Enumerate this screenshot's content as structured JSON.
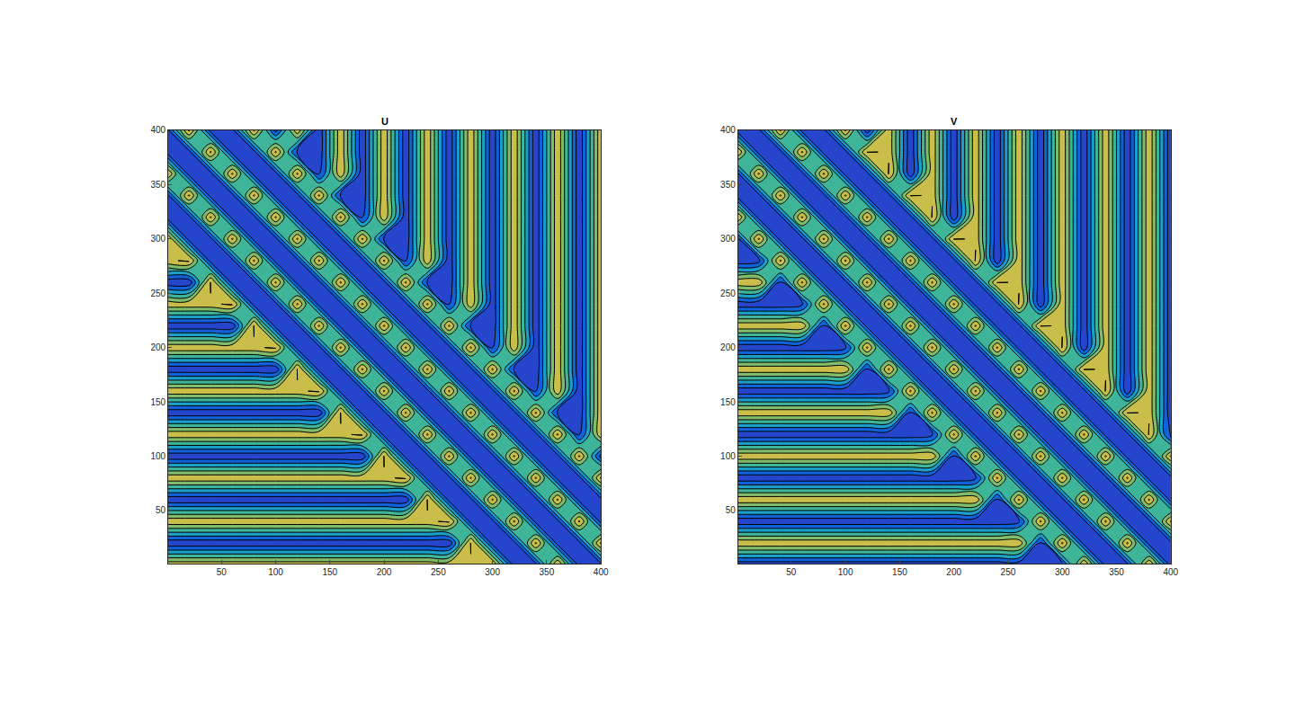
{
  "chart_data": [
    {
      "type": "contour",
      "title": "U",
      "x": [
        0,
        20,
        40,
        60,
        80,
        100,
        120,
        140,
        160,
        180,
        200,
        220,
        240,
        260,
        280,
        300,
        320,
        340,
        360,
        380,
        400
      ],
      "y": [
        0,
        20,
        40,
        60,
        80,
        100,
        120,
        140,
        160,
        180,
        200,
        220,
        240,
        260,
        280,
        300,
        320,
        340,
        360,
        380,
        400
      ],
      "z": [
        [
          85,
          85,
          85,
          85,
          85,
          85,
          85,
          85,
          85,
          85,
          85,
          85,
          85,
          85,
          85,
          90,
          20,
          20,
          90,
          20,
          20
        ],
        [
          15,
          15,
          15,
          15,
          15,
          15,
          15,
          15,
          15,
          15,
          15,
          15,
          15,
          15,
          90,
          20,
          20,
          90,
          20,
          20,
          90
        ],
        [
          85,
          85,
          85,
          85,
          85,
          85,
          85,
          85,
          85,
          85,
          85,
          85,
          85,
          90,
          20,
          20,
          90,
          20,
          20,
          90,
          20
        ],
        [
          15,
          15,
          15,
          15,
          15,
          15,
          15,
          15,
          15,
          15,
          15,
          15,
          90,
          20,
          20,
          90,
          20,
          20,
          90,
          20,
          20
        ],
        [
          85,
          85,
          85,
          85,
          85,
          85,
          85,
          85,
          85,
          85,
          85,
          90,
          20,
          20,
          90,
          20,
          20,
          90,
          20,
          20,
          90
        ],
        [
          15,
          15,
          15,
          15,
          15,
          15,
          15,
          15,
          15,
          15,
          90,
          20,
          20,
          90,
          20,
          20,
          90,
          20,
          20,
          90,
          20
        ],
        [
          85,
          85,
          85,
          85,
          85,
          85,
          85,
          85,
          85,
          90,
          20,
          20,
          90,
          20,
          20,
          90,
          20,
          20,
          90,
          20,
          85
        ],
        [
          15,
          15,
          15,
          15,
          15,
          15,
          15,
          15,
          90,
          20,
          20,
          90,
          20,
          20,
          90,
          20,
          20,
          90,
          20,
          15,
          85
        ],
        [
          85,
          85,
          85,
          85,
          85,
          85,
          85,
          90,
          20,
          20,
          90,
          20,
          20,
          90,
          20,
          20,
          90,
          20,
          85,
          15,
          85
        ],
        [
          15,
          15,
          15,
          15,
          15,
          15,
          90,
          20,
          20,
          90,
          20,
          20,
          90,
          20,
          20,
          90,
          20,
          15,
          85,
          15,
          85
        ],
        [
          85,
          85,
          85,
          85,
          85,
          90,
          20,
          20,
          90,
          20,
          20,
          90,
          20,
          20,
          90,
          20,
          85,
          15,
          85,
          15,
          85
        ],
        [
          15,
          15,
          15,
          15,
          90,
          20,
          20,
          90,
          20,
          20,
          90,
          20,
          20,
          90,
          20,
          15,
          85,
          15,
          85,
          15,
          85
        ],
        [
          85,
          85,
          85,
          90,
          20,
          20,
          90,
          20,
          20,
          90,
          20,
          20,
          90,
          20,
          85,
          15,
          85,
          15,
          85,
          15,
          85
        ],
        [
          15,
          15,
          90,
          20,
          20,
          90,
          20,
          20,
          90,
          20,
          20,
          90,
          20,
          15,
          85,
          15,
          85,
          15,
          85,
          15,
          85
        ],
        [
          85,
          90,
          20,
          20,
          90,
          20,
          20,
          90,
          20,
          20,
          90,
          20,
          85,
          15,
          85,
          15,
          85,
          15,
          85,
          15,
          85
        ],
        [
          90,
          20,
          20,
          90,
          20,
          20,
          90,
          20,
          20,
          90,
          20,
          15,
          85,
          15,
          85,
          15,
          85,
          15,
          85,
          15,
          85
        ],
        [
          20,
          20,
          90,
          20,
          20,
          90,
          20,
          20,
          90,
          20,
          85,
          15,
          85,
          15,
          85,
          15,
          85,
          15,
          85,
          15,
          85
        ],
        [
          20,
          90,
          20,
          20,
          90,
          20,
          20,
          90,
          20,
          15,
          85,
          15,
          85,
          15,
          85,
          15,
          85,
          15,
          85,
          15,
          85
        ],
        [
          90,
          20,
          20,
          90,
          20,
          20,
          90,
          20,
          85,
          15,
          85,
          15,
          85,
          15,
          85,
          15,
          85,
          15,
          85,
          15,
          85
        ],
        [
          20,
          20,
          90,
          20,
          20,
          90,
          20,
          15,
          85,
          15,
          85,
          15,
          85,
          15,
          85,
          15,
          85,
          15,
          85,
          15,
          85
        ],
        [
          20,
          90,
          20,
          20,
          90,
          20,
          85,
          15,
          85,
          15,
          85,
          15,
          85,
          15,
          85,
          15,
          85,
          15,
          85,
          15,
          85
        ]
      ],
      "zlim": [
        0,
        100
      ],
      "xlim": [
        1,
        400
      ],
      "ylim": [
        1,
        400
      ],
      "xticks": [
        50,
        100,
        150,
        200,
        250,
        300,
        350,
        400
      ],
      "yticks": [
        50,
        100,
        150,
        200,
        250,
        300,
        350,
        400
      ]
    },
    {
      "type": "contour",
      "title": "V",
      "x": [
        0,
        20,
        40,
        60,
        80,
        100,
        120,
        140,
        160,
        180,
        200,
        220,
        240,
        260,
        280,
        300,
        320,
        340,
        360,
        380,
        400
      ],
      "y": [
        0,
        20,
        40,
        60,
        80,
        100,
        120,
        140,
        160,
        180,
        200,
        220,
        240,
        260,
        280,
        300,
        320,
        340,
        360,
        380,
        400
      ],
      "z": [
        [
          15,
          15,
          15,
          15,
          15,
          15,
          15,
          15,
          15,
          15,
          15,
          15,
          15,
          15,
          15,
          20,
          90,
          20,
          20,
          90,
          20
        ],
        [
          85,
          85,
          85,
          85,
          85,
          85,
          85,
          85,
          85,
          85,
          85,
          85,
          85,
          85,
          20,
          90,
          20,
          20,
          90,
          20,
          20
        ],
        [
          15,
          15,
          15,
          15,
          15,
          15,
          15,
          15,
          15,
          15,
          15,
          15,
          15,
          20,
          90,
          20,
          20,
          90,
          20,
          20,
          90
        ],
        [
          85,
          85,
          85,
          85,
          85,
          85,
          85,
          85,
          85,
          85,
          85,
          85,
          20,
          90,
          20,
          20,
          90,
          20,
          20,
          90,
          20
        ],
        [
          15,
          15,
          15,
          15,
          15,
          15,
          15,
          15,
          15,
          15,
          15,
          20,
          90,
          20,
          20,
          90,
          20,
          20,
          90,
          20,
          20
        ],
        [
          85,
          85,
          85,
          85,
          85,
          85,
          85,
          85,
          85,
          85,
          20,
          90,
          20,
          20,
          90,
          20,
          20,
          90,
          20,
          20,
          90
        ],
        [
          15,
          15,
          15,
          15,
          15,
          15,
          15,
          15,
          15,
          20,
          90,
          20,
          20,
          90,
          20,
          20,
          90,
          20,
          20,
          90,
          15
        ],
        [
          85,
          85,
          85,
          85,
          85,
          85,
          85,
          85,
          20,
          90,
          20,
          20,
          90,
          20,
          20,
          90,
          20,
          20,
          90,
          85,
          15
        ],
        [
          15,
          15,
          15,
          15,
          15,
          15,
          15,
          20,
          90,
          20,
          20,
          90,
          20,
          20,
          90,
          20,
          20,
          90,
          15,
          85,
          15
        ],
        [
          85,
          85,
          85,
          85,
          85,
          85,
          20,
          90,
          20,
          20,
          90,
          20,
          20,
          90,
          20,
          20,
          90,
          85,
          15,
          85,
          15
        ],
        [
          15,
          15,
          15,
          15,
          15,
          20,
          90,
          20,
          20,
          90,
          20,
          20,
          90,
          20,
          20,
          90,
          15,
          85,
          15,
          85,
          15
        ],
        [
          85,
          85,
          85,
          85,
          20,
          90,
          20,
          20,
          90,
          20,
          20,
          90,
          20,
          20,
          90,
          85,
          15,
          85,
          15,
          85,
          15
        ],
        [
          15,
          15,
          15,
          20,
          90,
          20,
          20,
          90,
          20,
          20,
          90,
          20,
          20,
          90,
          15,
          85,
          15,
          85,
          15,
          85,
          15
        ],
        [
          85,
          85,
          20,
          90,
          20,
          20,
          90,
          20,
          20,
          90,
          20,
          20,
          90,
          85,
          15,
          85,
          15,
          85,
          15,
          85,
          15
        ],
        [
          15,
          20,
          90,
          20,
          20,
          90,
          20,
          20,
          90,
          20,
          20,
          90,
          15,
          85,
          15,
          85,
          15,
          85,
          15,
          85,
          15
        ],
        [
          20,
          90,
          20,
          20,
          90,
          20,
          20,
          90,
          20,
          20,
          90,
          85,
          15,
          85,
          15,
          85,
          15,
          85,
          15,
          85,
          15
        ],
        [
          90,
          20,
          20,
          90,
          20,
          20,
          90,
          20,
          20,
          90,
          15,
          85,
          15,
          85,
          15,
          85,
          15,
          85,
          15,
          85,
          15
        ],
        [
          20,
          20,
          90,
          20,
          20,
          90,
          20,
          20,
          90,
          85,
          15,
          85,
          15,
          85,
          15,
          85,
          15,
          85,
          15,
          85,
          15
        ],
        [
          20,
          90,
          20,
          20,
          90,
          20,
          20,
          90,
          15,
          85,
          15,
          85,
          15,
          85,
          15,
          85,
          15,
          85,
          15,
          85,
          15
        ],
        [
          90,
          20,
          20,
          90,
          20,
          20,
          90,
          85,
          15,
          85,
          15,
          85,
          15,
          85,
          15,
          85,
          15,
          85,
          15,
          85,
          15
        ],
        [
          20,
          20,
          90,
          20,
          20,
          90,
          15,
          85,
          15,
          85,
          15,
          85,
          15,
          85,
          15,
          85,
          15,
          85,
          15,
          85,
          15
        ]
      ],
      "zlim": [
        0,
        100
      ],
      "xlim": [
        1,
        400
      ],
      "ylim": [
        1,
        400
      ],
      "xticks": [
        50,
        100,
        150,
        200,
        250,
        300,
        350,
        400
      ],
      "yticks": [
        50,
        100,
        150,
        200,
        250,
        300,
        350,
        400
      ]
    }
  ]
}
